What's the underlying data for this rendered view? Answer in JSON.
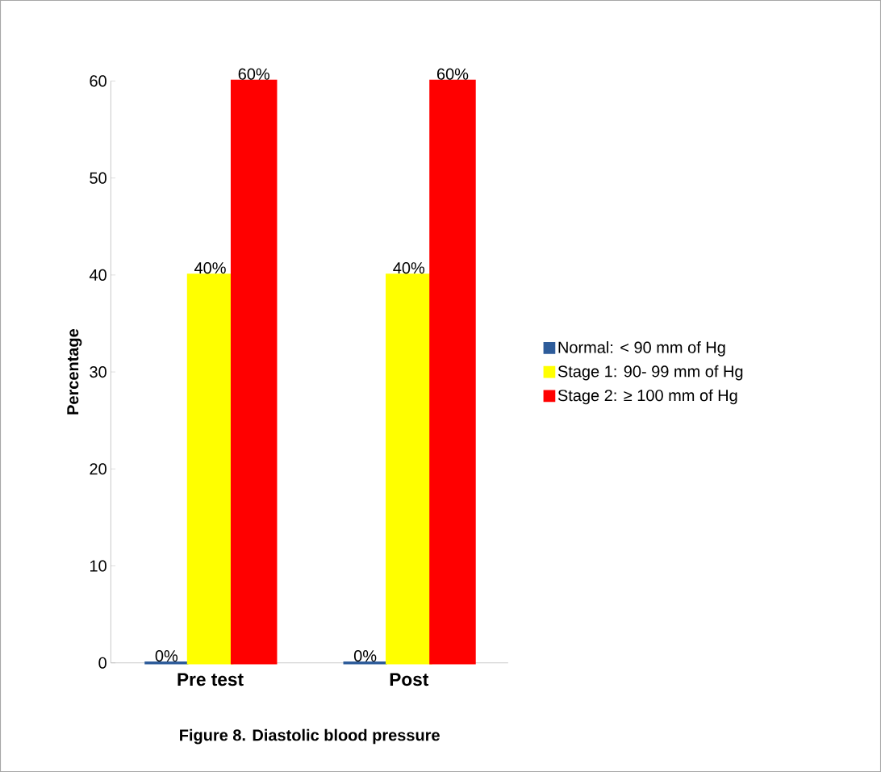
{
  "chart_data": {
    "type": "bar",
    "title": "Figure 8. Diastolic blood pressure",
    "ylabel": "Percentage",
    "categories": [
      "Pre test",
      "Post"
    ],
    "series": [
      {
        "name": "Normal: < 90 mm of Hg",
        "color": "#2e5c9a",
        "values": [
          0,
          0
        ],
        "value_labels": [
          "0%",
          "0%"
        ]
      },
      {
        "name": "Stage 1: 90- 99 mm of Hg",
        "color": "#ffff00",
        "values": [
          40,
          40
        ],
        "value_labels": [
          "40%",
          "40%"
        ]
      },
      {
        "name": "Stage 2: ≥ 100 mm of Hg",
        "color": "#ff0000",
        "values": [
          60,
          60
        ],
        "value_labels": [
          "60%",
          "60%"
        ]
      }
    ],
    "ylim": [
      0,
      60
    ],
    "yticks": [
      0,
      10,
      20,
      30,
      40,
      50,
      60
    ],
    "legend": "right",
    "grid": false
  }
}
